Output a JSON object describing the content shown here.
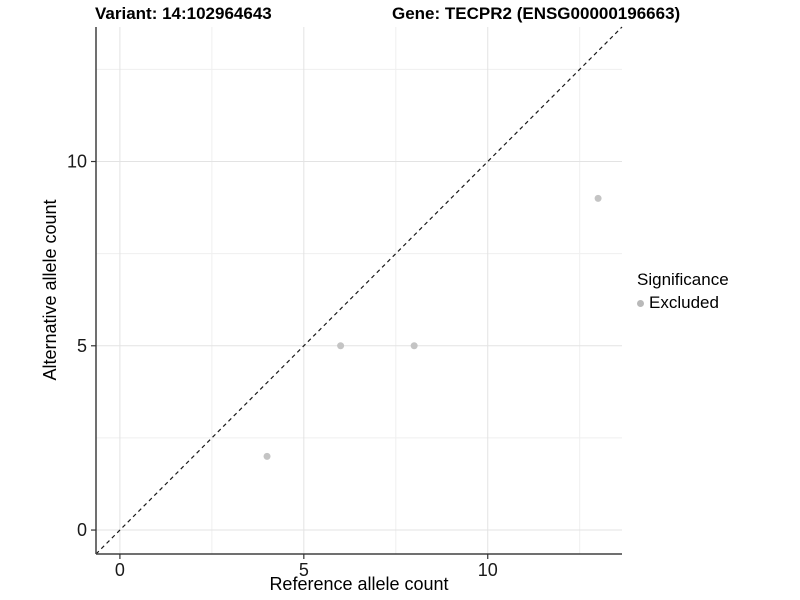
{
  "chart_data": {
    "type": "scatter",
    "title_left": "Variant: 14:102964643",
    "title_right": "Gene: TECPR2 (ENSG00000196663)",
    "xlabel": "Reference allele count",
    "ylabel": "Alternative allele count",
    "xlim": [
      -0.65,
      13.65
    ],
    "ylim": [
      -0.65,
      13.65
    ],
    "x_major_ticks": [
      0,
      5,
      10
    ],
    "y_major_ticks": [
      0,
      5,
      10
    ],
    "x_minor_gridlines": [
      2.5,
      7.5,
      12.5
    ],
    "y_minor_gridlines": [
      2.5,
      7.5,
      12.5
    ],
    "grid": true,
    "reference_line": {
      "meaning": "identity line y = x",
      "style": "dashed",
      "from": [
        -0.65,
        -0.65
      ],
      "to": [
        13.65,
        13.65
      ],
      "color": "#1a1a1a"
    },
    "series": [
      {
        "name": "Excluded",
        "color": "#c4c4c4",
        "points": [
          [
            4,
            2
          ],
          [
            6,
            5
          ],
          [
            8,
            5
          ],
          [
            13,
            9
          ]
        ]
      }
    ],
    "legend": {
      "title": "Significance",
      "position": "right",
      "items": [
        {
          "label": "Excluded",
          "color": "#b9b9b9"
        }
      ]
    },
    "colors": {
      "grid_major": "#e3e3e3",
      "grid_minor": "#efefef",
      "axis_line": "#404040",
      "tick_mark": "#333333"
    }
  }
}
